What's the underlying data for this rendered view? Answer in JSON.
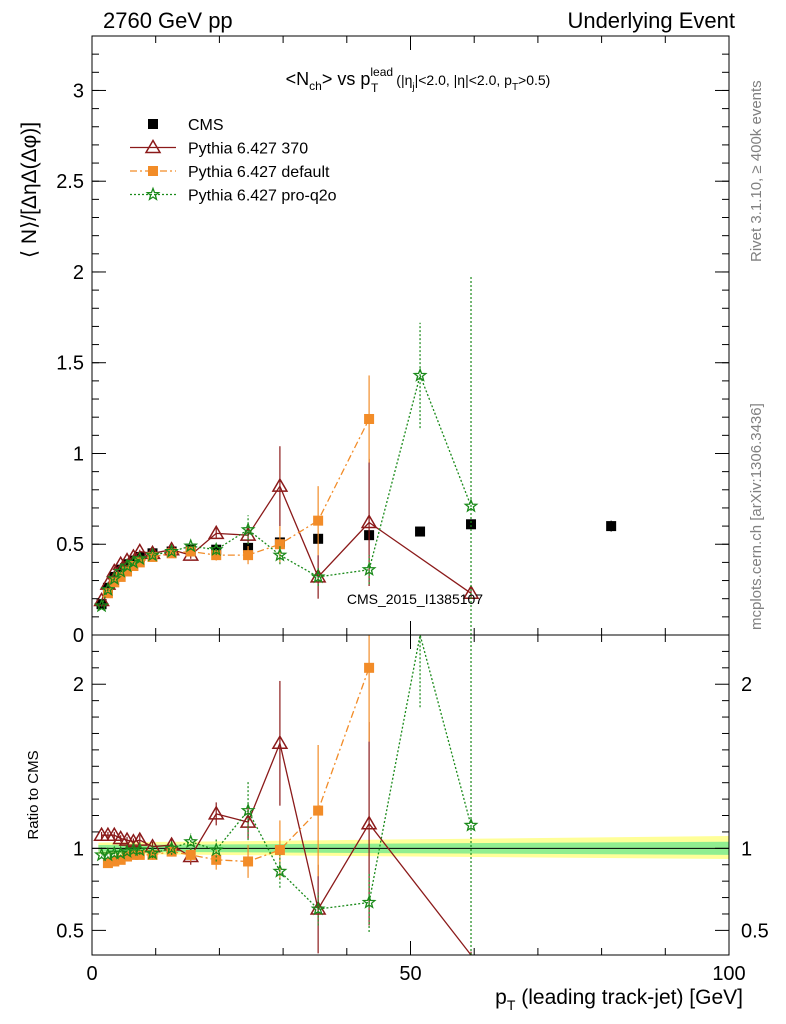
{
  "header": {
    "left": "2760 GeV pp",
    "right": "Underlying Event"
  },
  "side_labels": {
    "rivet": "Rivet 3.1.10, ≥ 400k events",
    "mcplots": "mcplots.cern.ch [arXiv:1306.3436]"
  },
  "chart_data": [
    {
      "type": "scatter",
      "panel": "main",
      "title_parts": {
        "n_open": "<N",
        "n_sub": "ch",
        "vs": "> vs p",
        "p_sup": "lead",
        "p_sub": "T",
        "c1": " (|η",
        "c1_sub": "j",
        "c2": "|<2.0, |η|<2.0, p",
        "c2_sub": "T",
        "c3": ">0.5)"
      },
      "ylabel": "⟨ N⟩/[ΔηΔ(Δφ)]",
      "xlim": [
        0,
        100
      ],
      "ylim": [
        0,
        3.3
      ],
      "yticks": [
        0,
        0.5,
        1,
        1.5,
        2,
        2.5,
        3
      ],
      "ytick_labels": [
        "0",
        "0.5",
        "1",
        "1.5",
        "2",
        "2.5",
        "3"
      ],
      "watermark": "CMS_2015_I1385107",
      "legend_position": "top-left",
      "series": [
        {
          "name": "CMS",
          "color": "#000000",
          "marker": "square",
          "x": [
            1.5,
            2.5,
            3.5,
            4.5,
            5.5,
            6.5,
            7.5,
            9.5,
            12.5,
            15.5,
            19.5,
            24.5,
            29.5,
            35.5,
            43.5,
            51.5,
            59.5,
            81.5
          ],
          "y": [
            0.17,
            0.26,
            0.32,
            0.36,
            0.39,
            0.41,
            0.43,
            0.45,
            0.46,
            0.47,
            0.47,
            0.48,
            0.51,
            0.53,
            0.55,
            0.57,
            0.61,
            0.6
          ],
          "err": [
            0.003,
            0.005,
            0.005,
            0.005,
            0.005,
            0.005,
            0.005,
            0.006,
            0.006,
            0.008,
            0.01,
            0.012,
            0.014,
            0.016,
            0.018,
            0.02,
            0.025,
            0.03
          ]
        },
        {
          "name": "Pythia 6.427 370",
          "color": "#8b1a1a",
          "marker": "triangle",
          "line": "solid",
          "x": [
            1.5,
            2.5,
            3.5,
            4.5,
            5.5,
            6.5,
            7.5,
            9.5,
            12.5,
            15.5,
            19.5,
            24.5,
            29.5,
            35.5,
            43.5,
            59.5
          ],
          "y": [
            0.19,
            0.28,
            0.35,
            0.39,
            0.41,
            0.43,
            0.46,
            0.45,
            0.47,
            0.44,
            0.56,
            0.55,
            0.82,
            0.32,
            0.62,
            0.23
          ],
          "err": [
            0.005,
            0.006,
            0.006,
            0.007,
            0.008,
            0.009,
            0.01,
            0.012,
            0.015,
            0.02,
            0.03,
            0.05,
            0.22,
            0.12,
            0.35,
            0.03
          ]
        },
        {
          "name": "Pythia 6.427 default",
          "color": "#f28c28",
          "marker": "square",
          "line": "dashdot",
          "x": [
            2.5,
            3.5,
            4.5,
            5.5,
            6.5,
            7.5,
            9.5,
            12.5,
            15.5,
            19.5,
            24.5,
            29.5,
            35.5,
            43.5
          ],
          "y": [
            0.23,
            0.29,
            0.32,
            0.35,
            0.38,
            0.4,
            0.43,
            0.45,
            0.46,
            0.44,
            0.44,
            0.5,
            0.63,
            1.19
          ],
          "err": [
            0.005,
            0.006,
            0.006,
            0.007,
            0.008,
            0.009,
            0.012,
            0.015,
            0.02,
            0.03,
            0.05,
            0.1,
            0.19,
            0.24
          ]
        },
        {
          "name": "Pythia 6.427 pro-q2o",
          "color": "#1a8a1a",
          "marker": "star",
          "line": "dotted",
          "x": [
            1.5,
            2.5,
            3.5,
            4.5,
            5.5,
            6.5,
            7.5,
            9.5,
            12.5,
            15.5,
            19.5,
            24.5,
            29.5,
            35.5,
            43.5,
            51.5,
            59.5
          ],
          "y": [
            0.16,
            0.25,
            0.31,
            0.35,
            0.38,
            0.4,
            0.42,
            0.44,
            0.46,
            0.49,
            0.47,
            0.58,
            0.44,
            0.32,
            0.36,
            1.43,
            0.71
          ],
          "err": [
            0.004,
            0.005,
            0.006,
            0.007,
            0.008,
            0.009,
            0.01,
            0.012,
            0.015,
            0.02,
            0.03,
            0.08,
            0.05,
            0.05,
            0.08,
            0.29,
            1.27
          ]
        }
      ]
    },
    {
      "type": "scatter",
      "panel": "ratio",
      "ylabel": "Ratio to CMS",
      "xlabel_parts": {
        "p": "p",
        "p_sub": "T",
        "rest": " (leading track-jet) [GeV]"
      },
      "xlim": [
        0,
        100
      ],
      "ylim": [
        0.35,
        2.3
      ],
      "xticks": [
        0,
        50,
        100
      ],
      "xtick_labels": [
        "0",
        "50",
        "100"
      ],
      "yticks": [
        0.5,
        1,
        2
      ],
      "ytick_labels": [
        "0.5",
        "1",
        "2"
      ],
      "reference": 1,
      "bands": {
        "inner": {
          "color": "#90ee90",
          "x": [
            1,
            100
          ],
          "lower": [
            0.98,
            0.96
          ],
          "upper": [
            1.02,
            1.04
          ]
        },
        "outer": {
          "color": "#ffff99",
          "x": [
            1,
            100
          ],
          "lower": [
            0.965,
            0.935
          ],
          "upper": [
            1.035,
            1.075
          ]
        }
      },
      "series": [
        {
          "name": "Pythia 6.427 370",
          "color": "#8b1a1a",
          "marker": "triangle",
          "line": "solid",
          "x": [
            1.5,
            2.5,
            3.5,
            4.5,
            5.5,
            6.5,
            7.5,
            9.5,
            12.5,
            15.5,
            19.5,
            24.5,
            29.5,
            35.5,
            43.5,
            59.5
          ],
          "y": [
            1.08,
            1.08,
            1.08,
            1.06,
            1.05,
            1.04,
            1.05,
            1.01,
            1.02,
            0.95,
            1.21,
            1.16,
            1.64,
            0.63,
            1.15,
            0.32
          ],
          "err": [
            0.02,
            0.02,
            0.02,
            0.02,
            0.02,
            0.02,
            0.03,
            0.03,
            0.04,
            0.05,
            0.07,
            0.1,
            0.38,
            0.27,
            0.62,
            0.05
          ]
        },
        {
          "name": "Pythia 6.427 default",
          "color": "#f28c28",
          "marker": "square",
          "line": "dashdot",
          "x": [
            2.5,
            3.5,
            4.5,
            5.5,
            6.5,
            7.5,
            9.5,
            12.5,
            15.5,
            19.5,
            24.5,
            29.5,
            35.5,
            43.5
          ],
          "y": [
            0.91,
            0.92,
            0.93,
            0.95,
            0.96,
            0.96,
            0.96,
            0.98,
            0.96,
            0.93,
            0.92,
            0.99,
            1.23,
            2.1
          ],
          "err": [
            0.02,
            0.02,
            0.02,
            0.02,
            0.02,
            0.02,
            0.03,
            0.03,
            0.04,
            0.06,
            0.1,
            0.18,
            0.4,
            0.45
          ]
        },
        {
          "name": "Pythia 6.427 pro-q2o",
          "color": "#1a8a1a",
          "marker": "star",
          "line": "dotted",
          "x": [
            1.5,
            2.5,
            3.5,
            4.5,
            5.5,
            6.5,
            7.5,
            9.5,
            12.5,
            15.5,
            19.5,
            24.5,
            29.5,
            35.5,
            43.5,
            51.5,
            59.5
          ],
          "y": [
            0.96,
            0.96,
            0.97,
            0.97,
            0.98,
            0.99,
            0.99,
            0.97,
            1.0,
            1.04,
            0.99,
            1.23,
            0.86,
            0.63,
            0.67,
            2.36,
            1.14
          ],
          "err": [
            0.02,
            0.02,
            0.02,
            0.02,
            0.02,
            0.02,
            0.03,
            0.03,
            0.04,
            0.05,
            0.07,
            0.18,
            0.1,
            0.1,
            0.18,
            0.5,
            2.1
          ]
        }
      ]
    }
  ]
}
